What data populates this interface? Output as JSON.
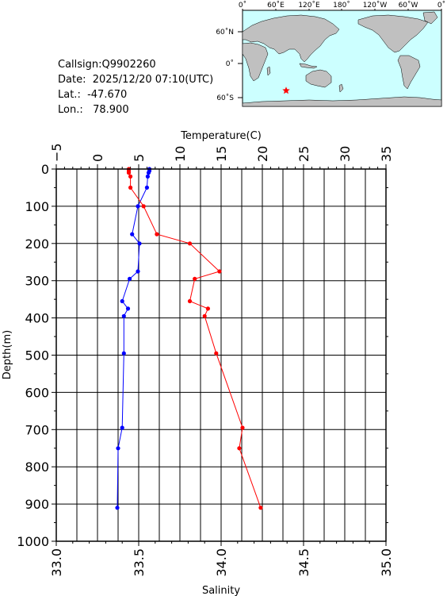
{
  "station": {
    "callsign": "Callsign:Q9902260",
    "date": "Date:  2025/12/20 07:10(UTC)",
    "lat": "Lat.:  -47.670",
    "lon": "Lon.:   78.900"
  },
  "map": {
    "lon_labels": [
      "0˚",
      "60˚E",
      "120˚E",
      "180˚",
      "120˚W",
      "60˚W",
      "0˚"
    ],
    "lat_labels": [
      "60˚N",
      "0˚",
      "60˚S"
    ],
    "station_marker": {
      "lon": 78.9,
      "lat": -47.67,
      "color": "#ff0000",
      "icon": "star-icon"
    },
    "ocean_color": "#ccffff",
    "land_color": "#c0c0c0"
  },
  "chart_data": {
    "type": "line",
    "y_axis": {
      "label": "Depth(m)",
      "range": [
        0,
        1000
      ],
      "ticks": [
        "0",
        "100",
        "200",
        "300",
        "400",
        "500",
        "600",
        "700",
        "800",
        "900",
        "1000"
      ],
      "inverted": true
    },
    "x_top": {
      "label": "Temperature(C)",
      "range": [
        -5,
        35
      ],
      "ticks": [
        "−5",
        "0",
        "5",
        "10",
        "15",
        "20",
        "25",
        "30",
        "35"
      ]
    },
    "x_bottom": {
      "label": "Salinity",
      "range": [
        33.0,
        35.0
      ],
      "ticks": [
        "33.0",
        "33.5",
        "34.0",
        "34.5",
        "35.0"
      ]
    },
    "grid": true,
    "series": [
      {
        "quantity": "temperature",
        "axis": "top",
        "color": "#0000ff",
        "points": [
          [
            6.3,
            0
          ],
          [
            6.3,
            5
          ],
          [
            6.2,
            10
          ],
          [
            6.1,
            20
          ],
          [
            6.0,
            50
          ],
          [
            4.9,
            100
          ],
          [
            4.2,
            175
          ],
          [
            5.1,
            200
          ],
          [
            4.9,
            275
          ],
          [
            3.9,
            295
          ],
          [
            3.0,
            355
          ],
          [
            3.7,
            375
          ],
          [
            3.2,
            395
          ],
          [
            3.2,
            495
          ],
          [
            3.0,
            695
          ],
          [
            2.5,
            750
          ],
          [
            2.4,
            910
          ]
        ]
      },
      {
        "quantity": "salinity",
        "axis": "bottom",
        "color": "#ff0000",
        "points": [
          [
            33.44,
            0
          ],
          [
            33.44,
            5
          ],
          [
            33.44,
            10
          ],
          [
            33.45,
            20
          ],
          [
            33.45,
            50
          ],
          [
            33.53,
            100
          ],
          [
            33.61,
            175
          ],
          [
            33.81,
            200
          ],
          [
            33.99,
            275
          ],
          [
            33.84,
            295
          ],
          [
            33.81,
            355
          ],
          [
            33.92,
            375
          ],
          [
            33.9,
            395
          ],
          [
            33.97,
            495
          ],
          [
            34.13,
            695
          ],
          [
            34.11,
            750
          ],
          [
            34.24,
            910
          ]
        ]
      }
    ]
  }
}
